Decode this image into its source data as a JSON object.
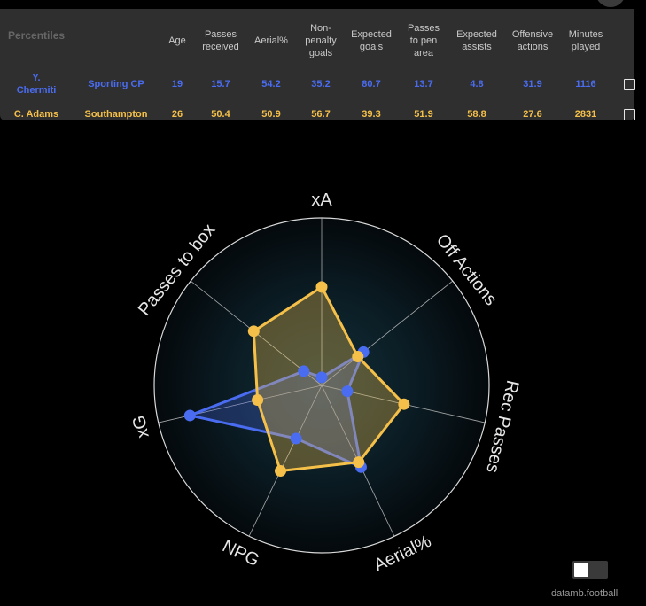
{
  "table": {
    "title": "Percentiles",
    "columns": [
      [
        "Age"
      ],
      [
        "Passes",
        "received"
      ],
      [
        "Aerial%"
      ],
      [
        "Non-",
        "penalty",
        "goals"
      ],
      [
        "Expected",
        "goals"
      ],
      [
        "Passes",
        "to pen",
        "area"
      ],
      [
        "Expected",
        "assists"
      ],
      [
        "Offensive",
        "actions"
      ],
      [
        "Minutes",
        "played"
      ]
    ],
    "rows": [
      {
        "player": [
          "Y.",
          "Chermiti"
        ],
        "club": "Sporting CP",
        "values": [
          "19",
          "15.7",
          "54.2",
          "35.2",
          "80.7",
          "13.7",
          "4.8",
          "31.9",
          "1116"
        ],
        "color": "#4a6cf0"
      },
      {
        "player": [
          "C. Adams"
        ],
        "club": "Southampton",
        "values": [
          "26",
          "50.4",
          "50.9",
          "56.7",
          "39.3",
          "51.9",
          "58.8",
          "27.6",
          "2831"
        ],
        "color": "#f5c04a"
      }
    ]
  },
  "chart_data": {
    "type": "radar",
    "range": [
      0,
      100
    ],
    "axes": [
      "xA",
      "Off Actions",
      "Rec Passes",
      "Aerial%",
      "NPG",
      "xG",
      "Passes to box"
    ],
    "series": [
      {
        "name": "Y. Chermiti",
        "color": "#4a6cf0",
        "values": [
          4.8,
          31.9,
          15.7,
          54.2,
          35.2,
          80.7,
          13.7
        ]
      },
      {
        "name": "C. Adams",
        "color": "#f5c04a",
        "values": [
          58.8,
          27.6,
          50.4,
          50.9,
          56.7,
          39.3,
          51.9
        ]
      }
    ],
    "grid": true
  },
  "footer": {
    "credit": "datamb.football"
  }
}
